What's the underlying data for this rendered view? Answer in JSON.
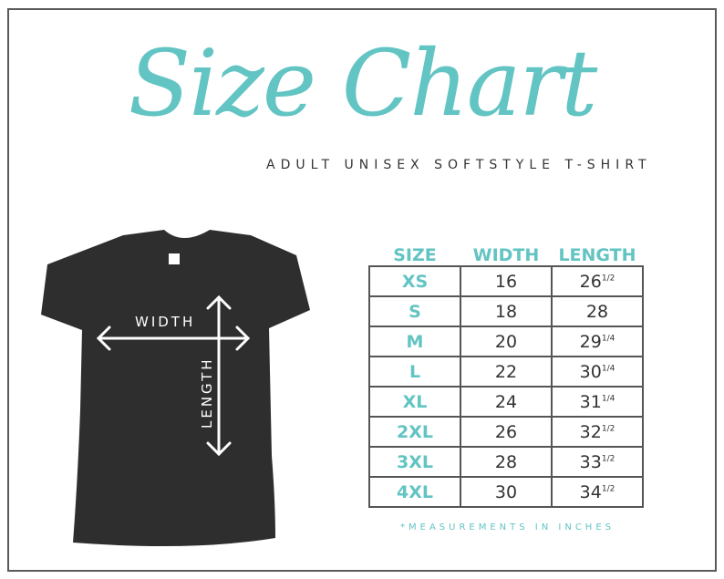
{
  "title": "Size Chart",
  "subtitle": "ADULT UNISEX SOFTSTYLE T-SHIRT",
  "diagram": {
    "width_label": "WIDTH",
    "length_label": "LENGTH"
  },
  "note": "*MEASUREMENTS IN INCHES",
  "colors": {
    "accent": "#62c4c3",
    "shirt": "#2e2e2e",
    "text": "#333333"
  },
  "chart_data": {
    "type": "table",
    "columns": [
      "SIZE",
      "WIDTH",
      "LENGTH"
    ],
    "rows": [
      {
        "size": "XS",
        "width": "16",
        "length": "26",
        "frac": "1/2"
      },
      {
        "size": "S",
        "width": "18",
        "length": "28",
        "frac": ""
      },
      {
        "size": "M",
        "width": "20",
        "length": "29",
        "frac": "1/4"
      },
      {
        "size": "L",
        "width": "22",
        "length": "30",
        "frac": "1/4"
      },
      {
        "size": "XL",
        "width": "24",
        "length": "31",
        "frac": "1/4"
      },
      {
        "size": "2XL",
        "width": "26",
        "length": "32",
        "frac": "1/2"
      },
      {
        "size": "3XL",
        "width": "28",
        "length": "33",
        "frac": "1/2"
      },
      {
        "size": "4XL",
        "width": "30",
        "length": "34",
        "frac": "1/2"
      }
    ]
  }
}
